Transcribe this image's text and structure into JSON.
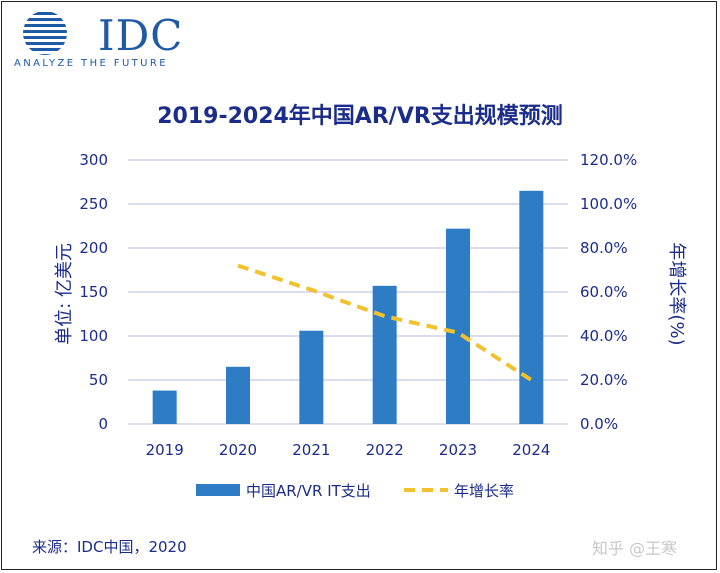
{
  "logo": {
    "name": "IDC",
    "tagline": "ANALYZE THE FUTURE"
  },
  "chart_data": {
    "type": "bar",
    "title": "2019-2024年中国AR/VR支出规模预测",
    "categories": [
      "2019",
      "2020",
      "2021",
      "2022",
      "2023",
      "2024"
    ],
    "series": [
      {
        "name": "中国AR/VR IT支出",
        "type": "bar",
        "axis": "left",
        "color": "#2e7dc4",
        "values": [
          38,
          65,
          106,
          157,
          222,
          265
        ]
      },
      {
        "name": "年增长率",
        "type": "line",
        "style": "dashed",
        "axis": "right",
        "color": "#f2c12e",
        "values": [
          null,
          72.0,
          61.0,
          49.0,
          41.5,
          20.0
        ]
      }
    ],
    "ylabel": "单位: 亿美元",
    "ylabel_right": "年增长率(%)",
    "ylim": [
      0,
      300
    ],
    "yticks": [
      "0",
      "50",
      "100",
      "150",
      "200",
      "250",
      "300"
    ],
    "ylim_right": [
      0,
      120
    ],
    "yticks_right": [
      "0.0%",
      "20.0%",
      "40.0%",
      "60.0%",
      "80.0%",
      "100.0%",
      "120.0%"
    ],
    "grid": true,
    "legend_position": "bottom"
  },
  "source": "来源：IDC中国，2020",
  "watermark": "知乎 @王寒"
}
